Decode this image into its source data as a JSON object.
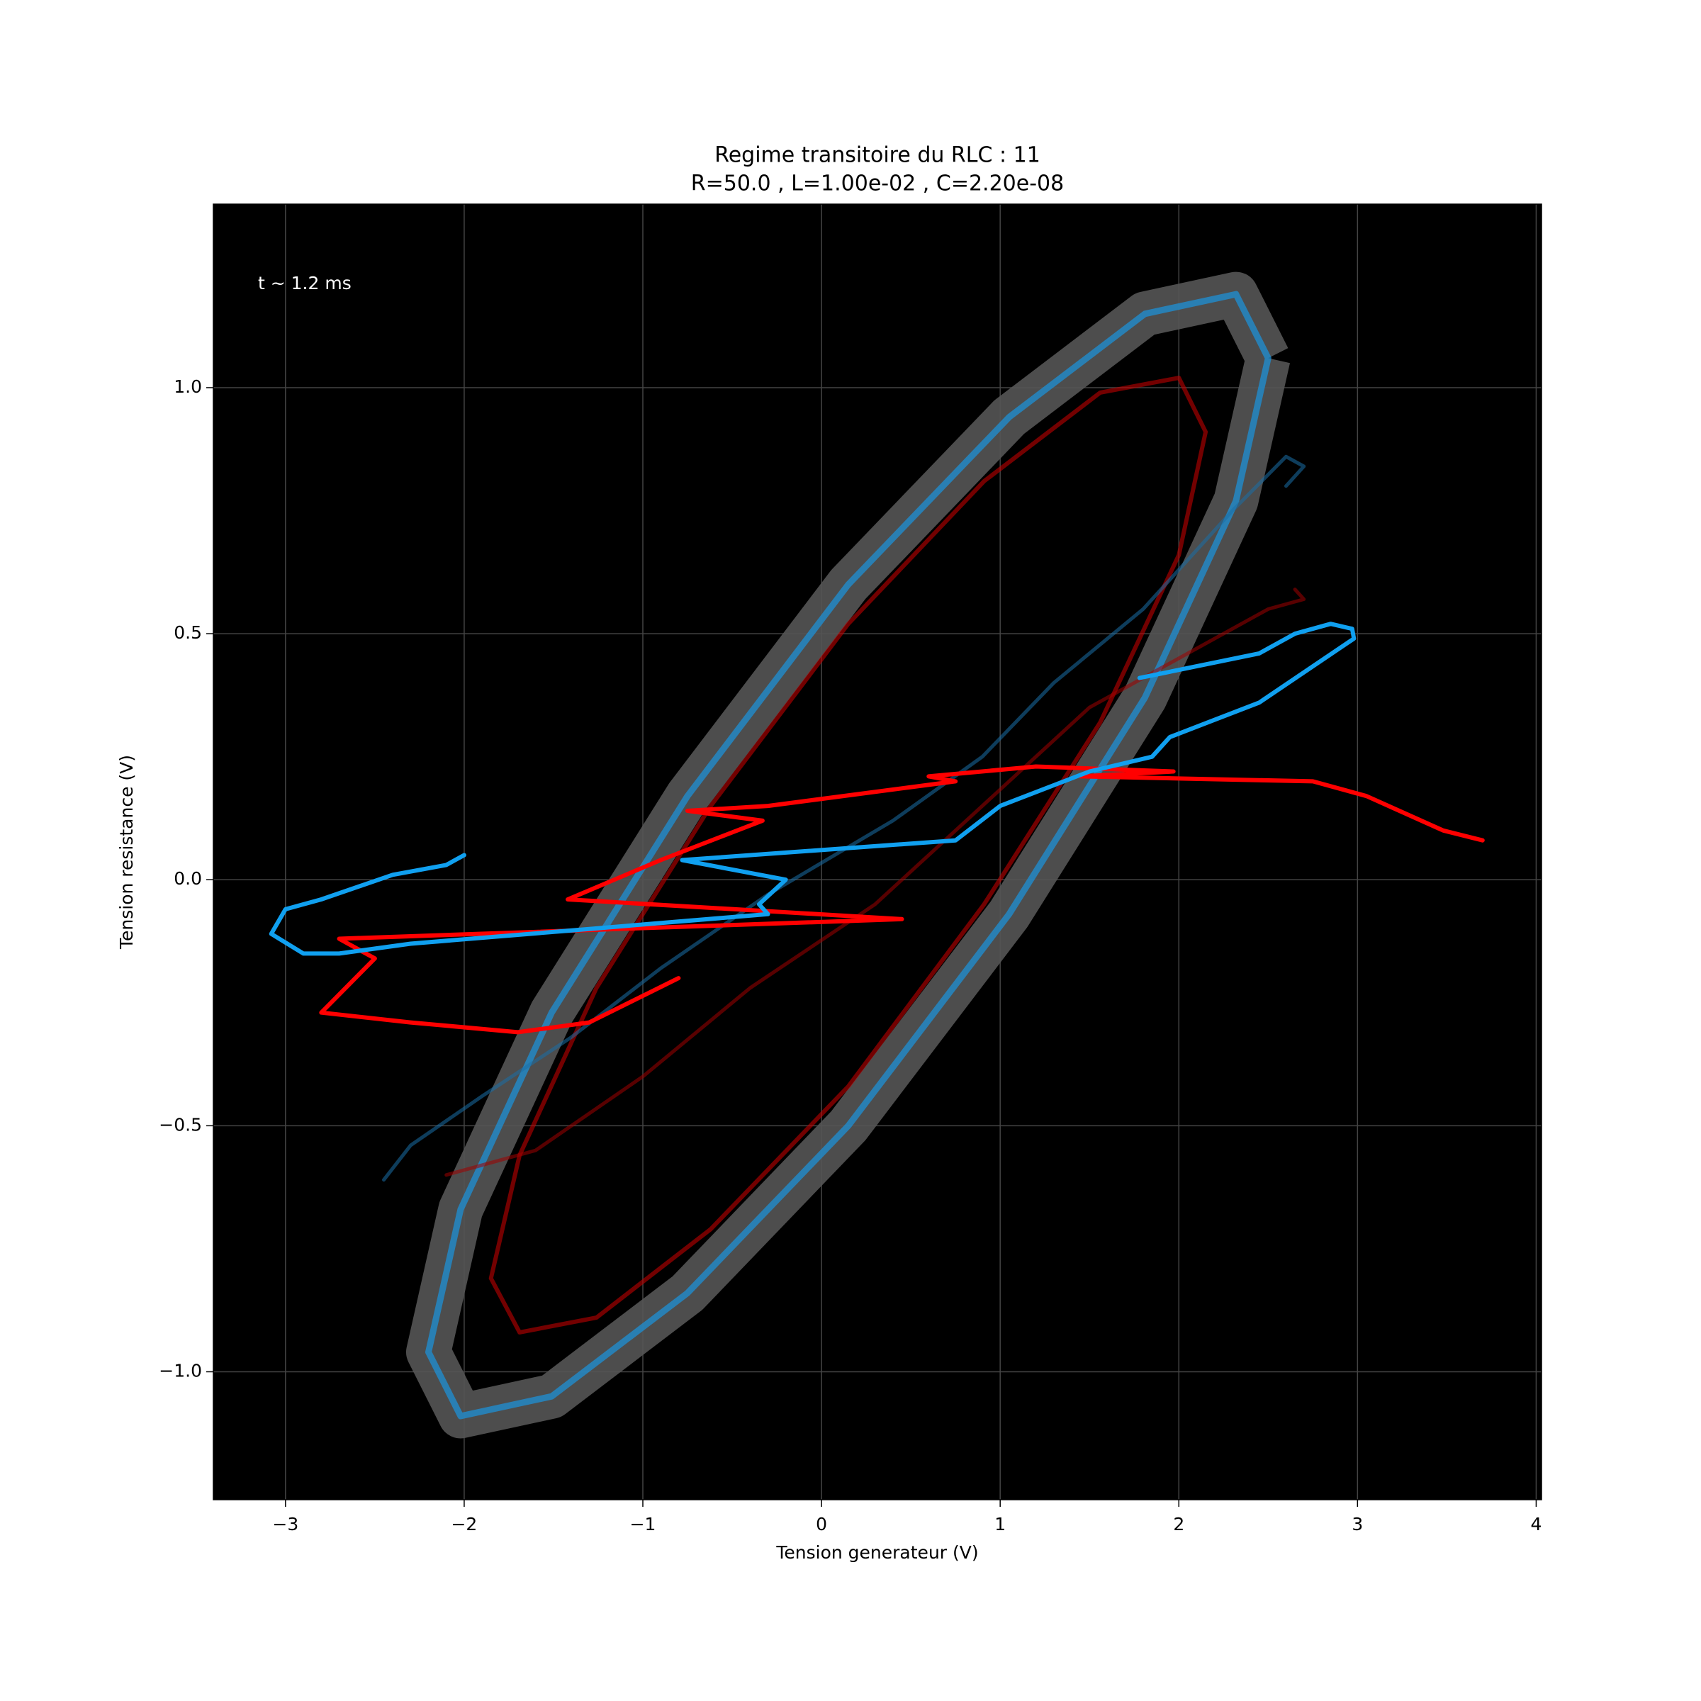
{
  "chart_data": {
    "type": "line",
    "title": "Regime transitoire du RLC : 11",
    "subtitle": "R=50.0 ,  L=1.00e-02 ,  C=2.20e-08",
    "x_label": "Tension generateur (V)",
    "y_label": "Tension resistance (V)",
    "annotation": "t ~ 1.2 ms",
    "background": "#000000",
    "grid": true,
    "xlim": [
      -3.404,
      4.03
    ],
    "ylim": [
      -1.26,
      1.373
    ],
    "xticks": [
      {
        "value": -3,
        "label": "−3"
      },
      {
        "value": -2,
        "label": "−2"
      },
      {
        "value": -1,
        "label": "−1"
      },
      0,
      1,
      2,
      3,
      4
    ],
    "yticks": [
      {
        "value": -1,
        "label": "−1.0"
      },
      {
        "value": -0.5,
        "label": "−0.5"
      },
      {
        "value": 0,
        "label": "0.0"
      },
      0.5,
      {
        "value": 1,
        "label": "1.0"
      }
    ],
    "series": [
      {
        "color": "#1e90d6",
        "opacity": 0.75,
        "width": 9,
        "halo_color": "#555555",
        "x": [
          2.5,
          2.32,
          1.81,
          1.05,
          0.15,
          -0.75,
          -1.51,
          -2.02,
          -2.2,
          -2.02,
          -1.51,
          -0.75,
          0.15,
          1.05,
          1.81,
          2.32,
          2.5
        ],
        "values": [
          1.06,
          1.19,
          1.15,
          0.94,
          0.6,
          0.17,
          -0.27,
          -0.67,
          -0.96,
          -1.09,
          -1.05,
          -0.84,
          -0.5,
          -0.07,
          0.37,
          0.77,
          1.06
        ]
      },
      {
        "color": "#c00000",
        "opacity": 0.6,
        "width": 6,
        "x": [
          2.15,
          2.0,
          1.56,
          0.91,
          0.15,
          -0.62,
          -1.26,
          -1.69,
          -1.85,
          -1.69,
          -1.26,
          -0.62,
          0.15,
          0.91,
          1.56,
          2.0,
          2.15
        ],
        "values": [
          0.91,
          1.02,
          0.99,
          0.81,
          0.52,
          0.15,
          -0.22,
          -0.56,
          -0.81,
          -0.92,
          -0.89,
          -0.71,
          -0.42,
          -0.05,
          0.32,
          0.66,
          0.91
        ]
      },
      {
        "color": "#1a6fa8",
        "opacity": 0.55,
        "width": 5,
        "x": [
          -2.45,
          -2.3,
          -1.9,
          -1.4,
          -0.9,
          -0.3,
          0.4,
          0.9,
          1.3,
          1.8,
          2.3,
          2.6,
          2.7,
          2.6
        ],
        "values": [
          -0.61,
          -0.54,
          -0.44,
          -0.32,
          -0.18,
          -0.03,
          0.12,
          0.25,
          0.4,
          0.55,
          0.75,
          0.86,
          0.84,
          0.8
        ]
      },
      {
        "color": "#a00000",
        "opacity": 0.55,
        "width": 5,
        "x": [
          -2.1,
          -1.6,
          -1.0,
          -0.4,
          0.3,
          0.9,
          1.5,
          2.0,
          2.5,
          2.7,
          2.65
        ],
        "values": [
          -0.6,
          -0.55,
          -0.4,
          -0.22,
          -0.05,
          0.15,
          0.35,
          0.45,
          0.55,
          0.57,
          0.59
        ]
      },
      {
        "color": "#ff0000",
        "opacity": 1,
        "width": 6,
        "x": [
          3.7,
          3.48,
          3.05,
          2.75,
          1.45,
          1.97,
          1.2,
          0.6,
          0.75,
          -0.3,
          -0.75,
          -0.33,
          -0.9,
          -1.42,
          0.45,
          -2.7,
          -2.5,
          -2.8,
          -2.3,
          -1.7,
          -1.3,
          -0.8
        ],
        "values": [
          0.08,
          0.1,
          0.17,
          0.2,
          0.21,
          0.22,
          0.23,
          0.21,
          0.2,
          0.15,
          0.14,
          0.12,
          0.04,
          -0.04,
          -0.08,
          -0.12,
          -0.16,
          -0.27,
          -0.29,
          -0.31,
          -0.29,
          -0.2
        ]
      },
      {
        "color": "#10a0f0",
        "opacity": 1,
        "width": 6,
        "x": [
          -2.0,
          -2.1,
          -2.4,
          -2.8,
          -3.0,
          -3.08,
          -2.9,
          -2.7,
          -2.3,
          -1.3,
          -0.3,
          -0.35,
          -0.2,
          -0.78,
          0.75,
          1.0,
          1.5,
          1.85,
          1.95,
          2.45,
          2.98,
          2.97,
          2.85,
          2.65,
          2.45,
          1.78
        ],
        "values": [
          0.05,
          0.03,
          0.01,
          -0.04,
          -0.06,
          -0.11,
          -0.15,
          -0.15,
          -0.13,
          -0.1,
          -0.07,
          -0.05,
          0.0,
          0.04,
          0.08,
          0.15,
          0.22,
          0.25,
          0.29,
          0.36,
          0.49,
          0.51,
          0.52,
          0.5,
          0.46,
          0.41
        ]
      }
    ]
  }
}
